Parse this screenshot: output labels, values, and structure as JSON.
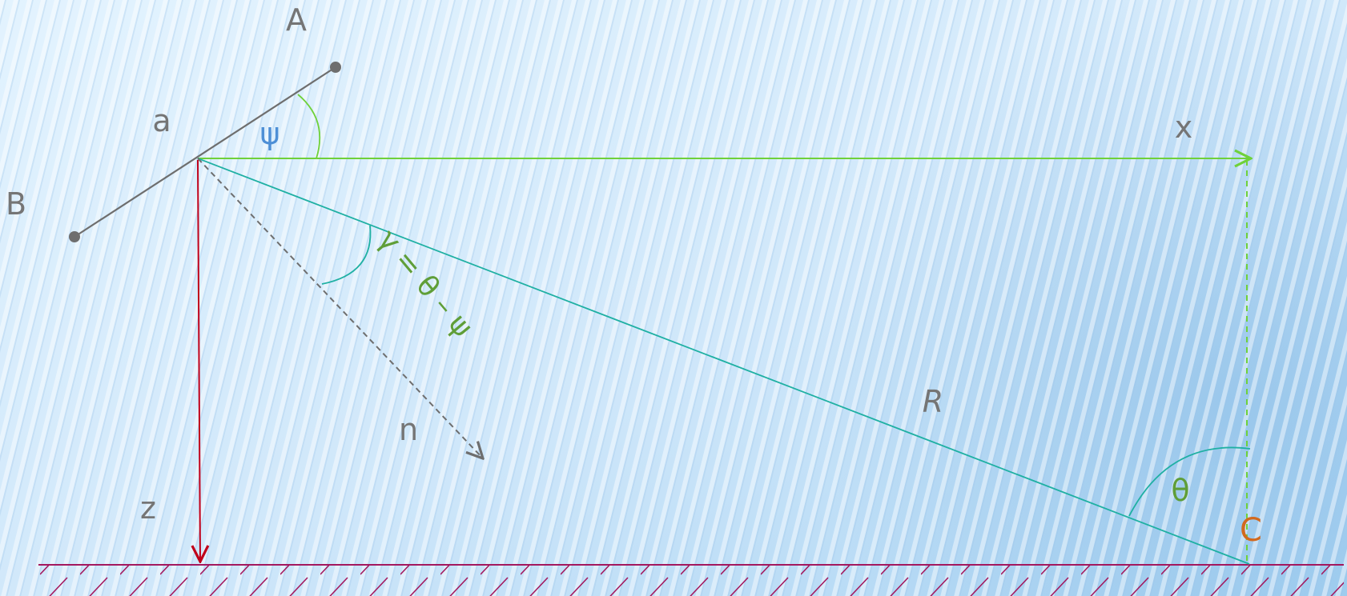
{
  "labels": {
    "point_a": "A",
    "point_b": "B",
    "segment_a": "a",
    "angle_psi": "ψ",
    "axis_x": "x",
    "axis_z": "z",
    "normal_n": "n",
    "distance_r": "R",
    "angle_theta": "θ",
    "point_c": "C",
    "gamma_formula": "γ = θ – ψ"
  },
  "colors": {
    "background_top": "#e3f3fe",
    "background_bottom": "#a9d3f2",
    "stripe": "#ffffff",
    "label_gray": "#757575",
    "segment_gray": "#6e6e6e",
    "x_axis_green": "#6fd13a",
    "z_axis_red": "#c0001a",
    "r_line_teal": "#1fb0a3",
    "normal_gray": "#6e6e6e",
    "psi_blue": "#4d8fd6",
    "gamma_green": "#5f9e38",
    "theta_green": "#5f9e38",
    "c_orange": "#d2691e",
    "ground_magenta": "#a3185e"
  },
  "icons": {
    "x_axis_arrowhead": "arrowhead-right",
    "z_axis_arrowhead": "arrowhead-down",
    "normal_arrowhead": "arrowhead-diagonal"
  }
}
